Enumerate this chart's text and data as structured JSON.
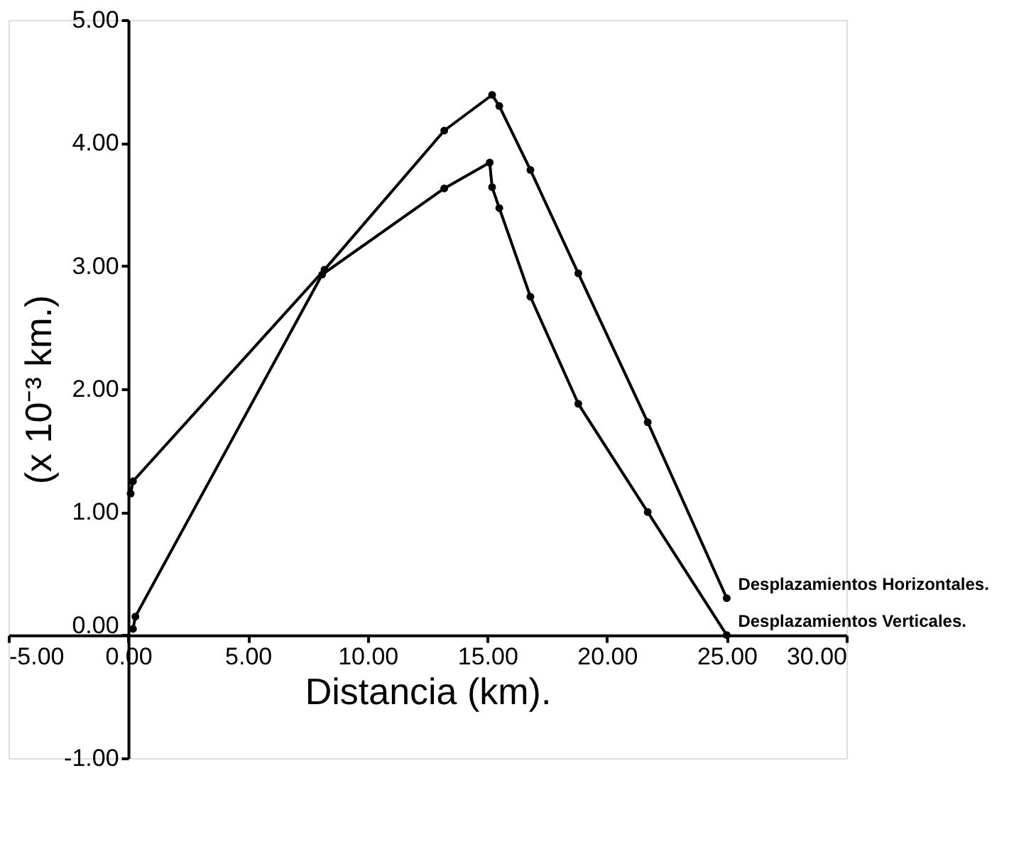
{
  "chart_data": {
    "type": "line",
    "xlabel": "Distancia (km).",
    "ylabel": "(x 10⁻³ km.)",
    "series": [
      {
        "name": "Desplazamientos Horizontales.",
        "color": "#000000",
        "x": [
          0.1,
          0.2,
          8.2,
          13.2,
          15.2,
          15.5,
          16.8,
          18.8,
          21.7,
          25.0
        ],
        "values": [
          1.15,
          1.25,
          2.97,
          4.1,
          4.39,
          4.3,
          3.78,
          2.94,
          1.73,
          0.3
        ]
      },
      {
        "name": "Desplazamientos Verticales.",
        "color": "#000000",
        "x": [
          0.2,
          0.3,
          8.1,
          13.2,
          15.1,
          15.2,
          15.5,
          16.8,
          18.8,
          21.7,
          25.0
        ],
        "values": [
          0.05,
          0.15,
          2.93,
          3.63,
          3.84,
          3.64,
          3.47,
          2.75,
          1.88,
          1.0,
          0.0
        ]
      }
    ],
    "xlim": [
      -5,
      30
    ],
    "ylim": [
      -1,
      5
    ],
    "xticks": [
      {
        "value": -5,
        "label": "-5.00"
      },
      {
        "value": 0,
        "label": "0.00"
      },
      {
        "value": 5,
        "label": "5.00"
      },
      {
        "value": 10,
        "label": "10.00"
      },
      {
        "value": 15,
        "label": "15.00"
      },
      {
        "value": 20,
        "label": "20.00"
      },
      {
        "value": 25,
        "label": "25.00"
      },
      {
        "value": 30,
        "label": "30.00"
      }
    ],
    "yticks": [
      {
        "value": -1,
        "label": "-1.00"
      },
      {
        "value": 0,
        "label": "0.00"
      },
      {
        "value": 1,
        "label": "1.00"
      },
      {
        "value": 2,
        "label": "2.00"
      },
      {
        "value": 3,
        "label": "3.00"
      },
      {
        "value": 4,
        "label": "4.00"
      },
      {
        "value": 5,
        "label": "5.00"
      }
    ],
    "grid": false,
    "marker": "circle",
    "line_style": "solid"
  }
}
